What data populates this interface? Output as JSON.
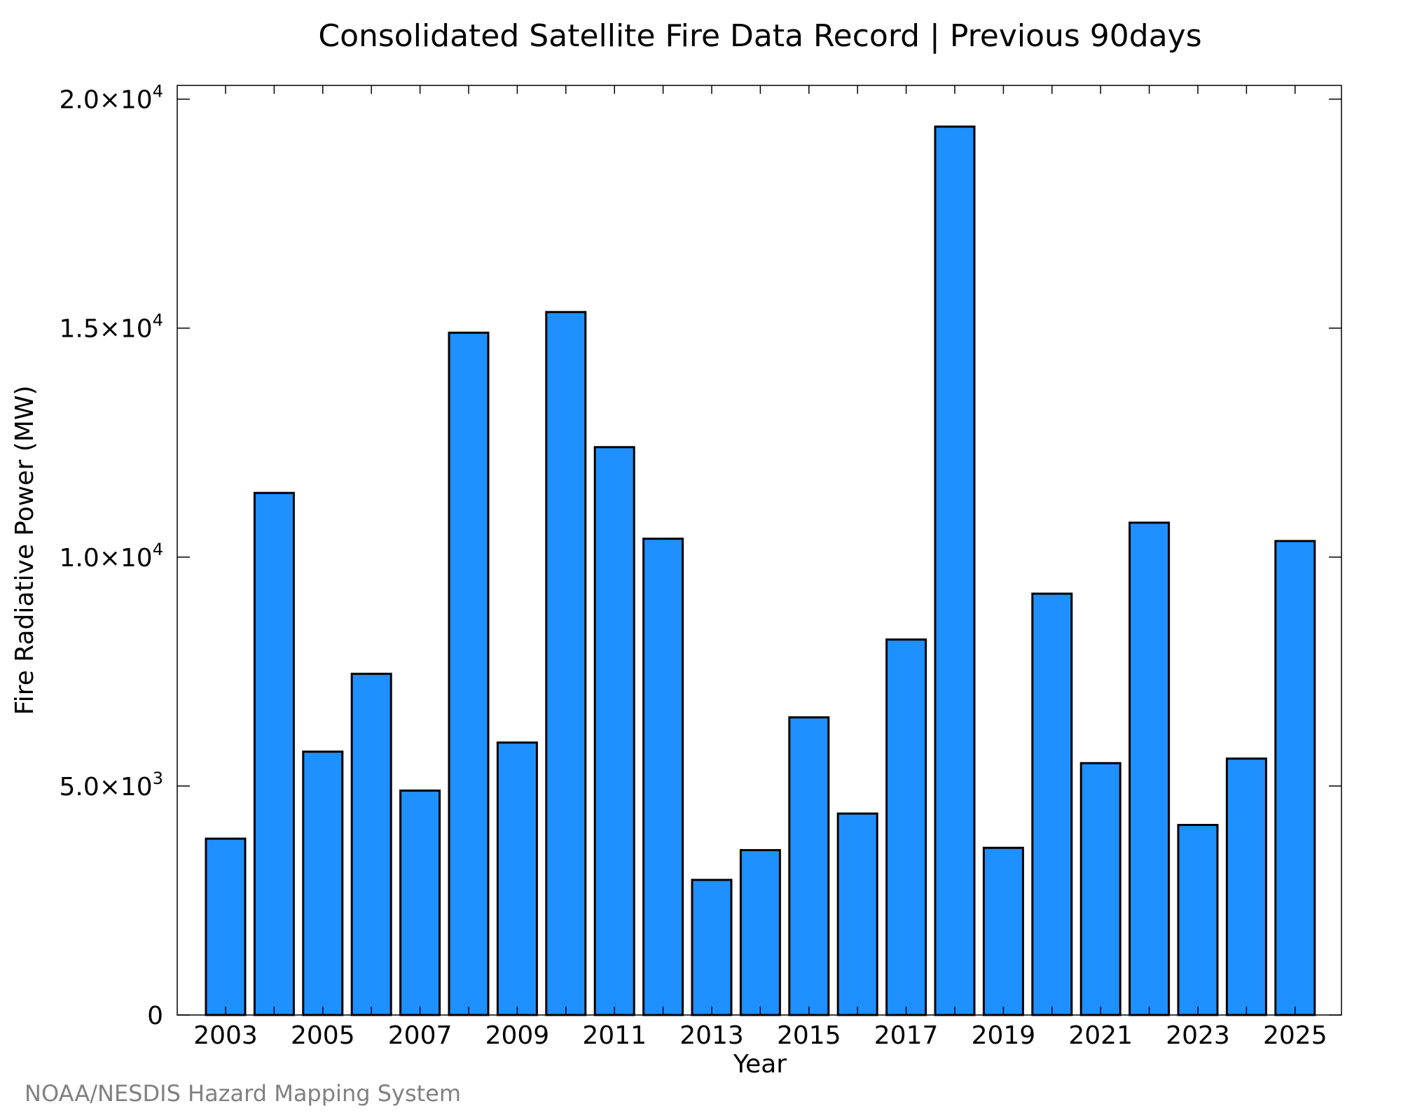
{
  "chart_data": {
    "type": "bar",
    "title": "Consolidated Satellite Fire Data Record | Previous 90days",
    "xlabel": "Year",
    "ylabel": "Fire Radiative Power (MW)",
    "credit": "NOAA/NESDIS Hazard Mapping System",
    "bar_color": "#1e90ff",
    "categories": [
      "2003",
      "2004",
      "2005",
      "2006",
      "2007",
      "2008",
      "2009",
      "2010",
      "2011",
      "2012",
      "2013",
      "2014",
      "2015",
      "2016",
      "2017",
      "2018",
      "2019",
      "2020",
      "2021",
      "2022",
      "2023",
      "2024",
      "2025"
    ],
    "values": [
      3850,
      11400,
      5750,
      7450,
      4900,
      14900,
      5950,
      15350,
      12400,
      10400,
      2950,
      3600,
      6500,
      4400,
      8200,
      19400,
      3650,
      9200,
      5500,
      10750,
      4150,
      5600,
      10350
    ],
    "ylim": [
      0,
      20300
    ],
    "y_ticks": [
      {
        "value": 0,
        "mantissa": "0",
        "exponent": ""
      },
      {
        "value": 5000,
        "mantissa": "5.0×10",
        "exponent": "3"
      },
      {
        "value": 10000,
        "mantissa": "1.0×10",
        "exponent": "4"
      },
      {
        "value": 15000,
        "mantissa": "1.5×10",
        "exponent": "4"
      },
      {
        "value": 20000,
        "mantissa": "2.0×10",
        "exponent": "4"
      }
    ],
    "x_tick_labels": [
      "2003",
      "2005",
      "2007",
      "2009",
      "2011",
      "2013",
      "2015",
      "2017",
      "2019",
      "2021",
      "2023",
      "2025"
    ],
    "grid": false,
    "legend": "none"
  }
}
